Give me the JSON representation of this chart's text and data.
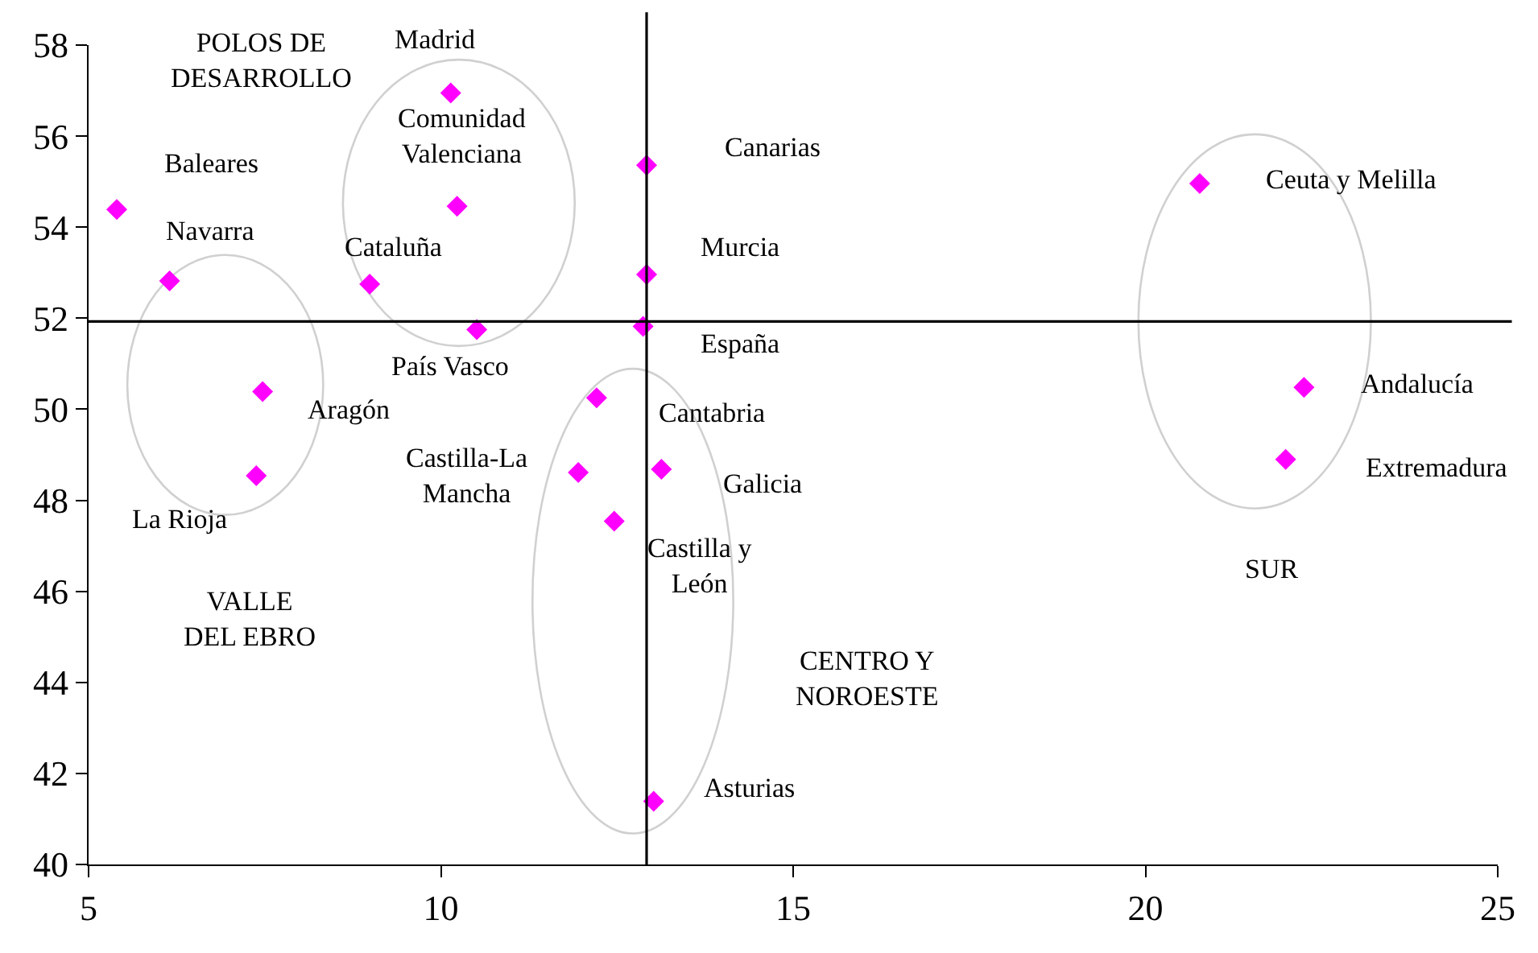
{
  "chart_data": {
    "type": "scatter",
    "marker": "diamond",
    "grid": false,
    "series": [
      {
        "color": "#ff00ff",
        "x": [
          10.14,
          10.23,
          12.92,
          20.77,
          5.4,
          6.15,
          8.99,
          12.92,
          10.51,
          12.87,
          7.47,
          12.21,
          22.25,
          21.99,
          7.38,
          11.95,
          13.13,
          12.46,
          13.02
        ],
        "values": [
          56.95,
          54.46,
          55.36,
          54.96,
          54.39,
          52.82,
          52.75,
          52.96,
          51.75,
          51.82,
          50.39,
          50.25,
          50.48,
          48.9,
          48.54,
          48.61,
          48.68,
          47.54,
          41.39
        ]
      }
    ],
    "xlim": [
      5,
      25
    ],
    "xticks": [
      5,
      10,
      15,
      20,
      25
    ],
    "ylim": [
      40,
      58
    ],
    "yticks": [
      40,
      42,
      44,
      46,
      48,
      50,
      52,
      54,
      56,
      58
    ],
    "ref_lines": [
      {
        "axis": "x",
        "value": 12.92,
        "color": "#000000"
      },
      {
        "axis": "y",
        "value": 51.93,
        "color": "#000000"
      }
    ],
    "annotations": [
      {
        "text": "Madrid",
        "x": 10.14,
        "y": 56.95
      },
      {
        "text": "Comunidad\nValenciana",
        "x": 10.23,
        "y": 54.46
      },
      {
        "text": "Canarias",
        "x": 12.92,
        "y": 55.36
      },
      {
        "text": "Ceuta y Melilla",
        "x": 20.77,
        "y": 54.96
      },
      {
        "text": "Baleares",
        "x": 5.4,
        "y": 54.39
      },
      {
        "text": "Navarra",
        "x": 6.15,
        "y": 52.82
      },
      {
        "text": "Cataluña",
        "x": 8.99,
        "y": 52.75
      },
      {
        "text": "Murcia",
        "x": 12.92,
        "y": 52.96
      },
      {
        "text": "España",
        "x": 12.87,
        "y": 51.82
      },
      {
        "text": "País Vasco",
        "x": 10.51,
        "y": 51.75
      },
      {
        "text": "Aragón",
        "x": 7.47,
        "y": 50.39
      },
      {
        "text": "Cantabria",
        "x": 12.21,
        "y": 50.25
      },
      {
        "text": "Andalucía",
        "x": 22.25,
        "y": 50.48
      },
      {
        "text": "Castilla-La\nMancha",
        "x": 11.95,
        "y": 48.61
      },
      {
        "text": "Galicia",
        "x": 13.13,
        "y": 48.68
      },
      {
        "text": "Extremadura",
        "x": 21.99,
        "y": 48.9
      },
      {
        "text": "La Rioja",
        "x": 7.38,
        "y": 48.54
      },
      {
        "text": "Castilla y\nLeón",
        "x": 12.46,
        "y": 47.54
      },
      {
        "text": "Asturias",
        "x": 13.02,
        "y": 41.39
      },
      "POLOS DE\nDESARROLLO",
      "VALLE\nDEL EBRO",
      "CENTRO Y\nNOROESTE",
      "SUR"
    ]
  }
}
